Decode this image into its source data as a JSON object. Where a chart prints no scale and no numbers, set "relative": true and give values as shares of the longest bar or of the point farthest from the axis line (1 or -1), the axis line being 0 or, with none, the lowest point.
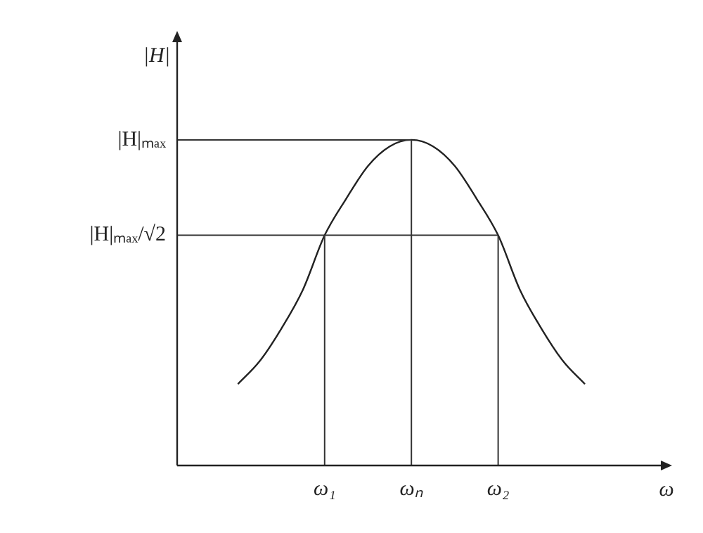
{
  "chart_data": {
    "type": "line",
    "xlabel": "ω",
    "ylabel": "|H|",
    "relative": true,
    "categories": [
      null,
      null,
      null,
      null,
      "ω₁",
      null,
      null,
      null,
      "ωₙ",
      null,
      null,
      null,
      "ω₂",
      null,
      null,
      null,
      null
    ],
    "series": [
      {
        "color": "#222222",
        "values": [
          0.25,
          0.32,
          0.42,
          0.54,
          0.707,
          0.82,
          0.92,
          0.98,
          1.0,
          0.98,
          0.92,
          0.82,
          0.707,
          0.54,
          0.42,
          0.32,
          0.25
        ]
      }
    ],
    "ref_lines": [
      {
        "axis": "x",
        "value": "ω₁"
      },
      {
        "axis": "x",
        "value": "ωₙ"
      },
      {
        "axis": "x",
        "value": "ω₂"
      },
      {
        "axis": "y",
        "value": 1,
        "label": "|H|ₘₐₓ"
      },
      {
        "axis": "y",
        "value": 0.707,
        "label": "|H|ₘₐₓ/√2"
      }
    ],
    "grid": false,
    "legend": false,
    "marker": "none",
    "line_style": "solid"
  }
}
